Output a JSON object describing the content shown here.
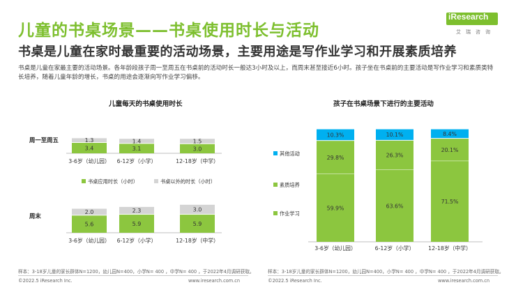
{
  "header": {
    "title": "儿童的书桌场景——书桌使用时长与活动",
    "subtitle": "书桌是儿童在家时最重要的活动场景，主要用途是写作业学习和开展素质培养",
    "description": "书桌是儿童在家最主要的活动场景。各年龄段孩子周一至周五在书桌前的活动时长一般达3小时及以上，而周末甚至接近6小时。孩子坐在书桌前的主要活动是写作业学习和素质类特长培养，随着儿童年龄的增长，书桌的用途会逐渐向写作业学习偏移。"
  },
  "logo": {
    "text": "iResearch",
    "cn": "艾瑞咨询",
    "color": "#7dbf2e"
  },
  "colors": {
    "green": "#8cc63f",
    "grey": "#d4d4d4",
    "cyan": "#00b0f0",
    "green_text": "#7dbf2e"
  },
  "left_chart_title": "儿童每天的书桌使用时长",
  "right_chart_title": "孩子在书桌场景下进行的主要活动",
  "chart_data": [
    {
      "type": "bar",
      "stacked": true,
      "title": "儿童每天的书桌使用时长",
      "panel": "周一至周五",
      "categories": [
        "3-6岁（幼儿园）",
        "6-12岁（小学）",
        "12-18岁（中学）"
      ],
      "series": [
        {
          "name": "书桌应用时长（小时）",
          "values": [
            3.4,
            3.1,
            3.0
          ]
        },
        {
          "name": "书桌以外的时长（小时）",
          "values": [
            1.3,
            1.4,
            1.5
          ]
        }
      ]
    },
    {
      "type": "bar",
      "stacked": true,
      "title": "儿童每天的书桌使用时长",
      "panel": "周末",
      "categories": [
        "3-6岁（幼儿园）",
        "6-12岁（小学）",
        "12-18岁（中学）"
      ],
      "series": [
        {
          "name": "书桌应用时长（小时）",
          "values": [
            5.6,
            5.9,
            5.9
          ]
        },
        {
          "name": "书桌以外的时长（小时）",
          "values": [
            2.0,
            2.3,
            3.0
          ]
        }
      ]
    },
    {
      "type": "bar",
      "stacked": true,
      "percent": true,
      "title": "孩子在书桌场景下进行的主要活动",
      "categories": [
        "3-6岁（幼儿园）",
        "6-12岁（小学）",
        "12-18岁（中学）"
      ],
      "series": [
        {
          "name": "作业学习",
          "values": [
            59.9,
            63.6,
            71.5
          ]
        },
        {
          "name": "素质培养",
          "values": [
            29.8,
            26.3,
            20.1
          ]
        },
        {
          "name": "其他活动",
          "values": [
            10.3,
            10.1,
            8.4
          ]
        }
      ]
    }
  ],
  "left_labels": {
    "weekday": "周一至周五",
    "weekend": "周末"
  },
  "left_legend": [
    "书桌应用时长（小时）",
    "书桌以外的时长（小时）"
  ],
  "left_categories": [
    "3-6岁（幼儿园）",
    "6-12岁（小学）",
    "12-18岁（中学）"
  ],
  "right_categories": [
    "3-6岁（幼儿园）",
    "6-12岁（小学）",
    "12-18岁（中学）"
  ],
  "right_legend": [
    "其他活动",
    "素质培养",
    "作业学习"
  ],
  "footer": {
    "left_source": "样本：3-18岁儿童的家长群体N=1200，幼儿园N=400，小学N= 400 ，中学N= 400 ，于2022年4月调研获取。",
    "right_source": "样本：3-18岁儿童的家长群体N=1200，幼儿园N=400，小学N= 400 ，中学N= 400 ，于2022年4月调研获取。",
    "copyright_left": "©2022.5 iResearch Inc.",
    "url_left": "www.iresearch.com.cn",
    "copyright_right": "©2022.5 iResearch Inc.",
    "url_right": "www.iresearch.com.cn"
  }
}
